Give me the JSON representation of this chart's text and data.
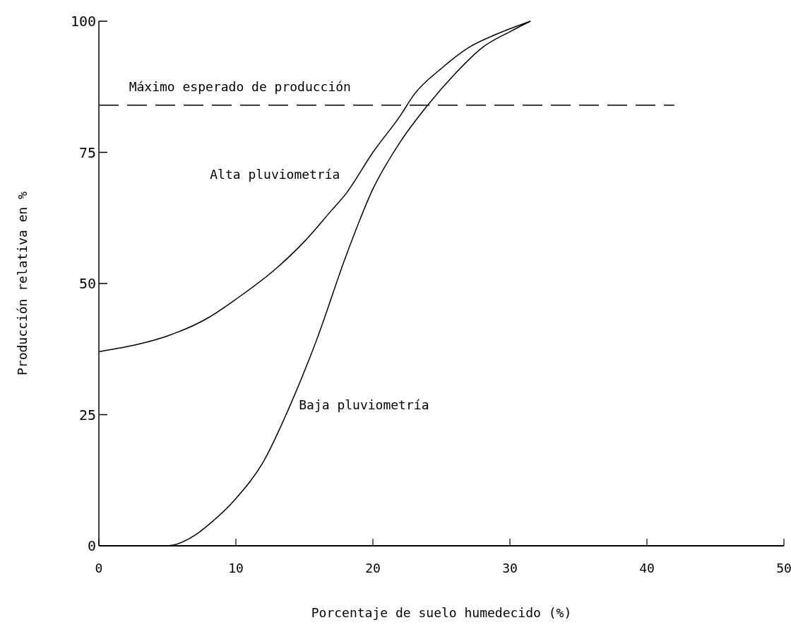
{
  "chart_data": {
    "type": "line",
    "xlabel": "Porcentaje de suelo humedecido (%)",
    "ylabel": "Producción relativa en %",
    "xlim": [
      0,
      50
    ],
    "xticks": [
      0,
      10,
      20,
      30,
      40,
      50
    ],
    "ylim": [
      0,
      100
    ],
    "yticks": [
      0,
      25,
      50,
      75,
      100
    ],
    "grid": false,
    "legend": false,
    "marker": "none",
    "line_style": "solid",
    "series": [
      {
        "name": "Alta pluviometría",
        "color": "#000000",
        "x": [
          0,
          3,
          5,
          8,
          10,
          13,
          15,
          17,
          18,
          20,
          22,
          23,
          25,
          27,
          29,
          31.5
        ],
        "values": [
          37,
          38.5,
          40,
          43.5,
          47,
          53,
          58,
          64,
          67,
          75,
          82,
          86,
          91,
          95,
          97.5,
          100
        ]
      },
      {
        "name": "Baja pluviometría",
        "color": "#000000",
        "x": [
          0,
          5,
          7,
          8,
          10,
          12,
          14,
          16,
          18,
          20,
          22,
          24,
          26,
          28,
          30,
          31.5
        ],
        "values": [
          0,
          0,
          2,
          4,
          9,
          16,
          27,
          40,
          55,
          68,
          77,
          84,
          90,
          95,
          98,
          100
        ]
      }
    ],
    "ref_lines": [
      {
        "axis": "y",
        "value": 84,
        "label": "Máximo esperado de producción",
        "line_style": "dashed",
        "color": "#000000"
      }
    ]
  }
}
